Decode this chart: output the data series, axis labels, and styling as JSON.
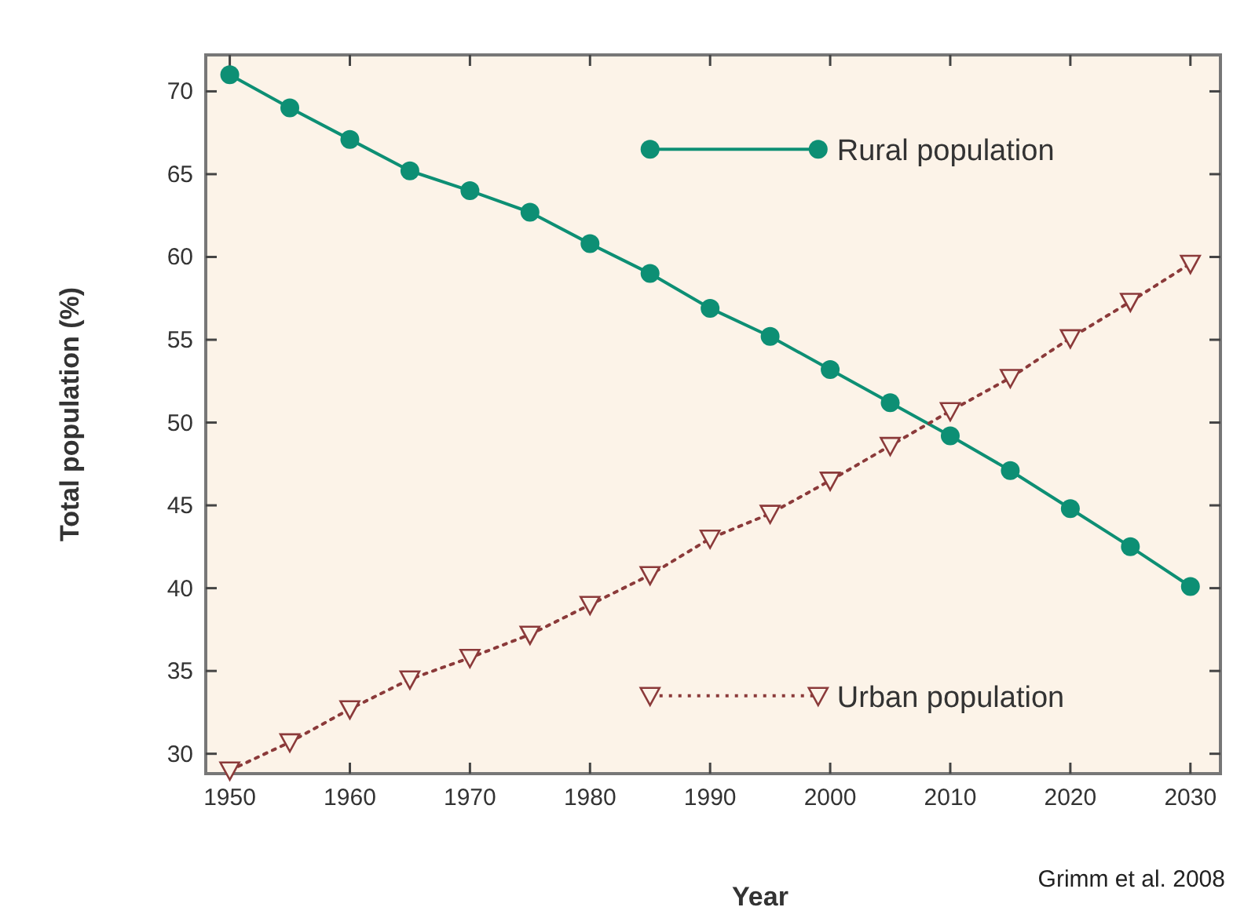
{
  "chart_data": {
    "type": "line",
    "xlabel": "Year",
    "ylabel": "Total population (%)",
    "x": [
      1950,
      1955,
      1960,
      1965,
      1970,
      1975,
      1980,
      1985,
      1990,
      1995,
      2000,
      2005,
      2010,
      2015,
      2020,
      2025,
      2030
    ],
    "series": [
      {
        "name": "Rural population",
        "color": "#0d8f74",
        "marker": "circle",
        "line_style": "solid",
        "values": [
          71.0,
          69.0,
          67.1,
          65.2,
          64.0,
          62.7,
          60.8,
          59.0,
          56.9,
          55.2,
          53.2,
          51.2,
          49.2,
          47.1,
          44.8,
          42.5,
          40.1
        ]
      },
      {
        "name": "Urban population",
        "color": "#8b3a3a",
        "marker": "triangle",
        "line_style": "dotted",
        "values": [
          29.0,
          30.7,
          32.7,
          34.5,
          35.8,
          37.2,
          39.0,
          40.8,
          43.0,
          44.5,
          46.5,
          48.6,
          50.7,
          52.7,
          55.1,
          57.3,
          59.6
        ]
      }
    ],
    "xlim": [
      1948,
      2032.5
    ],
    "ylim": [
      28.8,
      72.2
    ],
    "xticks": [
      1950,
      1960,
      1970,
      1980,
      1990,
      2000,
      2010,
      2020,
      2030
    ],
    "yticks": [
      30,
      35,
      40,
      45,
      50,
      55,
      60,
      65,
      70
    ],
    "legend": "right",
    "grid": false,
    "annotations": [
      "Grimm et al. 2008"
    ]
  }
}
